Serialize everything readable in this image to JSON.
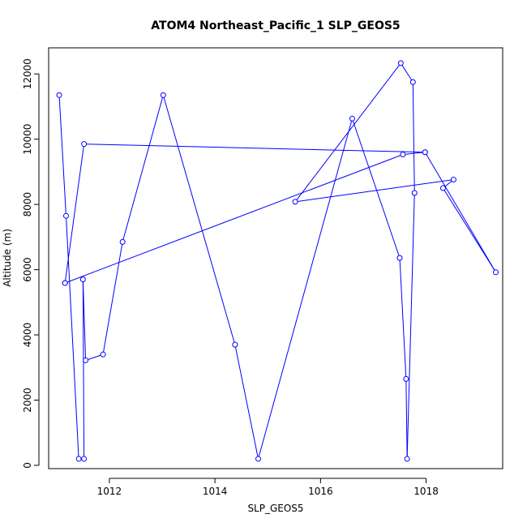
{
  "chart_data": {
    "type": "line",
    "title": "ATOM4 Northeast_Pacific_1 SLP_GEOS5",
    "xlabel": "SLP_GEOS5",
    "ylabel": "Altitude (m)",
    "xlim": [
      1010.85,
      1019.45
    ],
    "ylim": [
      -100,
      12800
    ],
    "xticks": [
      1012,
      1014,
      1016,
      1018
    ],
    "yticks": [
      0,
      2000,
      4000,
      6000,
      8000,
      10000,
      12000
    ],
    "x_tick_labels": [
      "1012",
      "1014",
      "1016",
      "1018"
    ],
    "y_tick_labels": [
      "0",
      "2000",
      "4000",
      "6000",
      "8000",
      "10000",
      "12000"
    ],
    "grid": false,
    "legend": "none",
    "line_color": "#0000ff",
    "marker": "open-circle",
    "series": [
      {
        "x": [
          1011.05,
          1011.18,
          1011.42,
          1011.52,
          1011.5,
          1011.55,
          1011.88,
          1012.25,
          1013.02,
          1014.38,
          1014.82,
          1016.6,
          1017.5,
          1017.62,
          1017.64,
          1017.78,
          1017.75,
          1017.52,
          1015.52,
          1018.52,
          1018.32,
          1019.32,
          1017.98,
          1017.56,
          1011.16
        ],
        "y": [
          11350,
          7650,
          200,
          200,
          5700,
          3220,
          3400,
          6850,
          11350,
          3700,
          200,
          10630,
          6360,
          2650,
          200,
          8350,
          11750,
          12330,
          8080,
          8760,
          8500,
          5920,
          9600,
          9530,
          5590
        ]
      },
      {
        "x": [
          1011.16,
          1011.52,
          1017.98
        ],
        "y": [
          5590,
          9850,
          9600
        ]
      }
    ]
  }
}
